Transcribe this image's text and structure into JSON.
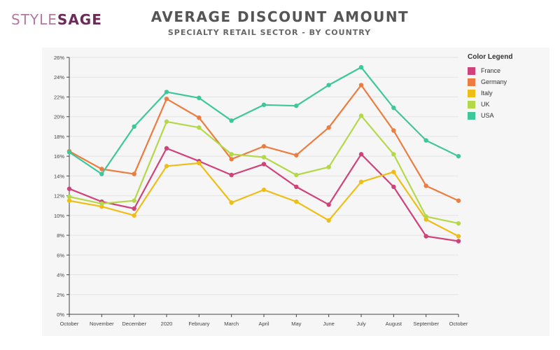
{
  "logo": {
    "part1": "STYLE",
    "part2": "SAGE"
  },
  "colors": {
    "France": "#d0427a",
    "Germany": "#ec7c3f",
    "Italy": "#eebe17",
    "UK": "#b4d84a",
    "USA": "#3ec79a",
    "grid": "#e3e3e3",
    "axis": "#444444"
  },
  "chart_data": {
    "type": "line",
    "title": "AVERAGE DISCOUNT AMOUNT",
    "subtitle": "SPECIALTY RETAIL SECTOR - BY COUNTRY",
    "xlabel": "",
    "ylabel": "",
    "categories": [
      "October",
      "November",
      "December",
      "2020",
      "February",
      "March",
      "April",
      "May",
      "June",
      "July",
      "August",
      "September",
      "October"
    ],
    "ylim": [
      0,
      26
    ],
    "yticks": [
      "0%",
      "2%",
      "4%",
      "6%",
      "8%",
      "10%",
      "12%",
      "14%",
      "16%",
      "18%",
      "20%",
      "22%",
      "24%",
      "26%"
    ],
    "grid": true,
    "legend_title": "Color Legend",
    "legend_position": "right",
    "series": [
      {
        "name": "France",
        "values": [
          12.7,
          11.4,
          10.7,
          16.8,
          15.5,
          14.1,
          15.2,
          12.9,
          11.1,
          16.2,
          12.9,
          7.9,
          7.4
        ]
      },
      {
        "name": "Germany",
        "values": [
          16.5,
          14.7,
          14.2,
          21.8,
          19.9,
          15.7,
          17.0,
          16.1,
          18.9,
          23.2,
          18.6,
          13.0,
          11.5
        ]
      },
      {
        "name": "Italy",
        "values": [
          11.5,
          10.9,
          10.0,
          15.0,
          15.3,
          11.3,
          12.6,
          11.4,
          9.5,
          13.4,
          14.4,
          9.6,
          7.9
        ]
      },
      {
        "name": "UK",
        "values": [
          11.9,
          11.2,
          11.5,
          19.5,
          18.9,
          16.2,
          15.9,
          14.1,
          14.9,
          20.1,
          16.2,
          9.9,
          9.2
        ]
      },
      {
        "name": "USA",
        "values": [
          16.4,
          14.2,
          19.0,
          22.5,
          21.9,
          19.6,
          21.2,
          21.1,
          23.2,
          25.0,
          20.9,
          17.6,
          16.0
        ]
      }
    ]
  }
}
